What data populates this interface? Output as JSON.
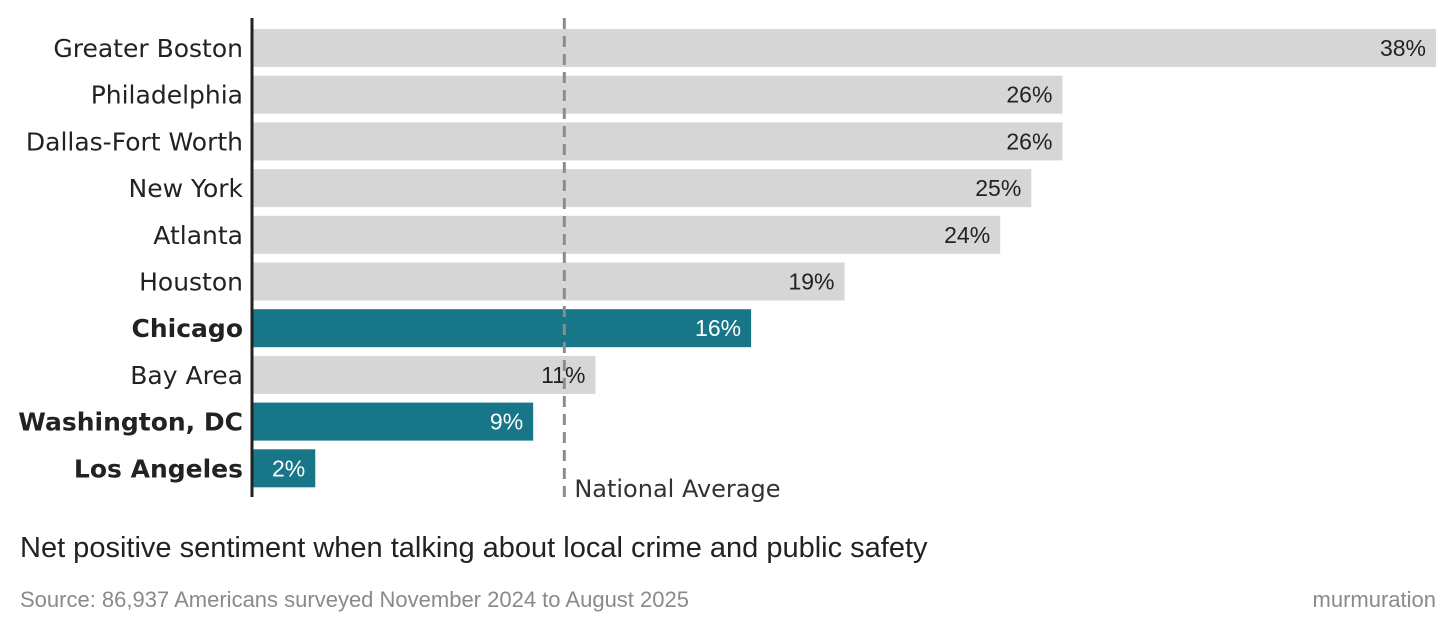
{
  "chart_data": {
    "type": "bar",
    "orientation": "horizontal",
    "title": "Net positive sentiment when talking about local crime and public safety",
    "source": "Source: 86,937 Americans surveyed November 2024 to August 2025",
    "brand": "murmuration",
    "unit": "%",
    "xlim": [
      0,
      38
    ],
    "categories": [
      "Greater Boston",
      "Philadelphia",
      "Dallas-Fort Worth",
      "New York",
      "Atlanta",
      "Houston",
      "Chicago",
      "Bay Area",
      "Washington, DC",
      "Los Angeles"
    ],
    "values": [
      38,
      26,
      26,
      25,
      24,
      19,
      16,
      11,
      9,
      2
    ],
    "value_labels": [
      "38%",
      "26%",
      "26%",
      "25%",
      "24%",
      "19%",
      "16%",
      "11%",
      "9%",
      "2%"
    ],
    "highlighted": [
      false,
      false,
      false,
      false,
      false,
      false,
      true,
      false,
      true,
      true
    ],
    "reference_line": {
      "label": "National Average",
      "value": 10,
      "style": "dashed"
    },
    "colors": {
      "default_bar": "#d6d6d6",
      "highlight_bar": "#177687",
      "reference": "#8c8c8c",
      "axis": "#222222"
    }
  }
}
